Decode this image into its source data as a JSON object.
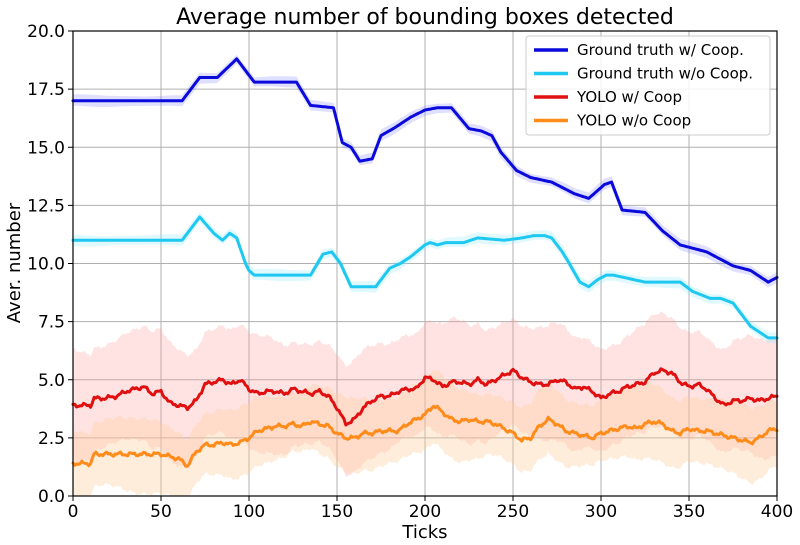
{
  "chart_data": {
    "type": "line",
    "title": "Average number of bounding boxes detected",
    "xlabel": "Ticks",
    "ylabel": "Aver. number",
    "xlim": [
      0,
      400
    ],
    "ylim": [
      0,
      20
    ],
    "xticks": [
      0,
      50,
      100,
      150,
      200,
      250,
      300,
      350,
      400
    ],
    "yticks": [
      0.0,
      2.5,
      5.0,
      7.5,
      10.0,
      12.5,
      15.0,
      17.5,
      20.0
    ],
    "xtick_labels": [
      "0",
      "50",
      "100",
      "150",
      "200",
      "250",
      "300",
      "350",
      "400"
    ],
    "ytick_labels": [
      "0.0",
      "2.5",
      "5.0",
      "7.5",
      "10.0",
      "12.5",
      "15.0",
      "17.5",
      "20.0"
    ],
    "grid": true,
    "legend_position": "top-right",
    "series": [
      {
        "name": "Ground truth w/ Coop.",
        "color": "#0a0adc",
        "band_color": "#8080ff",
        "band_opacity": 0.25,
        "x": [
          0,
          60,
          62,
          72,
          82,
          93,
          103,
          127,
          135,
          148,
          153,
          158,
          163,
          170,
          175,
          182,
          192,
          200,
          207,
          215,
          225,
          232,
          238,
          243,
          252,
          260,
          272,
          285,
          293,
          302,
          306,
          312,
          325,
          335,
          345,
          360,
          375,
          385,
          395,
          400
        ],
        "y": [
          17.0,
          17.0,
          17.0,
          18.0,
          18.0,
          18.8,
          17.8,
          17.8,
          16.8,
          16.7,
          15.2,
          15.0,
          14.4,
          14.5,
          15.5,
          15.8,
          16.3,
          16.6,
          16.7,
          16.7,
          15.8,
          15.7,
          15.5,
          14.8,
          14.0,
          13.7,
          13.5,
          13.0,
          12.8,
          13.4,
          13.5,
          12.3,
          12.2,
          11.4,
          10.8,
          10.5,
          9.9,
          9.7,
          9.2,
          9.4
        ]
      },
      {
        "name": "Ground truth w/o Coop.",
        "color": "#1ec8f0",
        "band_color": "#7ee8ff",
        "band_opacity": 0.25,
        "x": [
          0,
          62,
          72,
          80,
          85,
          89,
          93,
          98,
          100,
          103,
          108,
          135,
          142,
          147,
          152,
          158,
          172,
          180,
          186,
          192,
          200,
          203,
          207,
          212,
          222,
          230,
          245,
          255,
          262,
          268,
          272,
          278,
          282,
          288,
          293,
          298,
          303,
          307,
          313,
          325,
          345,
          352,
          362,
          368,
          375,
          385,
          395,
          400
        ],
        "y": [
          11.0,
          11.0,
          12.0,
          11.3,
          11.0,
          11.3,
          11.1,
          10.0,
          9.7,
          9.5,
          9.5,
          9.5,
          10.4,
          10.5,
          10.0,
          9.0,
          9.0,
          9.8,
          10.0,
          10.3,
          10.8,
          10.9,
          10.8,
          10.9,
          10.9,
          11.1,
          11.0,
          11.1,
          11.2,
          11.2,
          11.1,
          10.5,
          10.0,
          9.2,
          9.0,
          9.3,
          9.5,
          9.5,
          9.4,
          9.2,
          9.2,
          8.8,
          8.5,
          8.5,
          8.3,
          7.3,
          6.8,
          6.8
        ]
      },
      {
        "name": "YOLO w/ Coop",
        "color": "#e01010",
        "band_color": "#ff9a9a",
        "band_opacity": 0.28,
        "x": [
          0,
          10,
          12,
          18,
          25,
          30,
          35,
          40,
          45,
          50,
          55,
          60,
          65,
          70,
          75,
          80,
          85,
          90,
          95,
          100,
          105,
          110,
          115,
          120,
          125,
          130,
          135,
          140,
          145,
          150,
          155,
          160,
          165,
          170,
          175,
          180,
          185,
          190,
          195,
          200,
          205,
          210,
          215,
          220,
          225,
          230,
          235,
          240,
          245,
          250,
          255,
          260,
          265,
          270,
          275,
          280,
          285,
          290,
          295,
          300,
          305,
          310,
          315,
          320,
          325,
          330,
          335,
          340,
          345,
          350,
          355,
          360,
          365,
          370,
          375,
          380,
          385,
          390,
          395,
          400
        ],
        "y": [
          3.9,
          3.9,
          4.2,
          4.2,
          4.3,
          4.5,
          4.6,
          4.7,
          4.4,
          4.5,
          4.0,
          3.9,
          3.8,
          4.1,
          4.8,
          4.9,
          5.0,
          4.8,
          5.0,
          4.6,
          4.4,
          4.5,
          4.5,
          4.4,
          4.6,
          4.5,
          4.4,
          4.5,
          4.3,
          3.8,
          3.1,
          3.3,
          3.8,
          4.1,
          4.3,
          4.3,
          4.5,
          4.6,
          4.6,
          5.1,
          5.0,
          4.7,
          4.9,
          4.9,
          4.8,
          5.0,
          4.8,
          5.0,
          5.2,
          5.4,
          5.1,
          4.9,
          4.8,
          4.8,
          5.0,
          4.9,
          4.6,
          4.7,
          4.5,
          4.2,
          4.4,
          4.5,
          4.7,
          4.8,
          4.9,
          5.3,
          5.4,
          5.3,
          4.9,
          4.7,
          4.8,
          4.6,
          4.2,
          3.9,
          4.1,
          4.1,
          4.2,
          4.1,
          4.2,
          4.3
        ]
      },
      {
        "name": "YOLO w/o Coop",
        "color": "#ff8c1a",
        "band_color": "#ffcc99",
        "band_opacity": 0.35,
        "x": [
          0,
          10,
          12,
          18,
          25,
          30,
          35,
          40,
          45,
          50,
          55,
          60,
          65,
          70,
          75,
          80,
          85,
          90,
          95,
          100,
          105,
          110,
          115,
          120,
          125,
          130,
          135,
          140,
          145,
          150,
          155,
          160,
          165,
          170,
          175,
          180,
          185,
          190,
          195,
          200,
          205,
          210,
          215,
          220,
          225,
          230,
          235,
          240,
          245,
          250,
          255,
          260,
          265,
          270,
          275,
          280,
          285,
          290,
          295,
          300,
          305,
          310,
          315,
          320,
          325,
          330,
          335,
          340,
          345,
          350,
          355,
          360,
          365,
          370,
          375,
          380,
          385,
          390,
          395,
          400
        ],
        "y": [
          1.4,
          1.4,
          1.8,
          1.8,
          1.8,
          1.8,
          1.8,
          1.8,
          1.8,
          1.8,
          1.7,
          1.6,
          1.3,
          1.9,
          2.2,
          2.2,
          2.3,
          2.2,
          2.3,
          2.5,
          2.8,
          2.9,
          3.0,
          3.0,
          3.1,
          3.0,
          3.2,
          3.1,
          3.0,
          2.7,
          2.5,
          2.5,
          2.7,
          2.7,
          2.8,
          2.8,
          2.8,
          3.1,
          3.3,
          3.5,
          3.9,
          3.6,
          3.3,
          3.2,
          3.3,
          3.2,
          3.2,
          3.1,
          2.9,
          2.7,
          2.4,
          2.5,
          3.0,
          3.3,
          3.1,
          2.8,
          2.7,
          2.6,
          2.5,
          2.7,
          2.8,
          2.9,
          3.0,
          2.9,
          3.1,
          3.2,
          3.1,
          2.8,
          2.7,
          2.9,
          2.8,
          2.8,
          2.7,
          2.6,
          2.5,
          2.4,
          2.3,
          2.5,
          2.8,
          2.9
        ]
      }
    ]
  }
}
